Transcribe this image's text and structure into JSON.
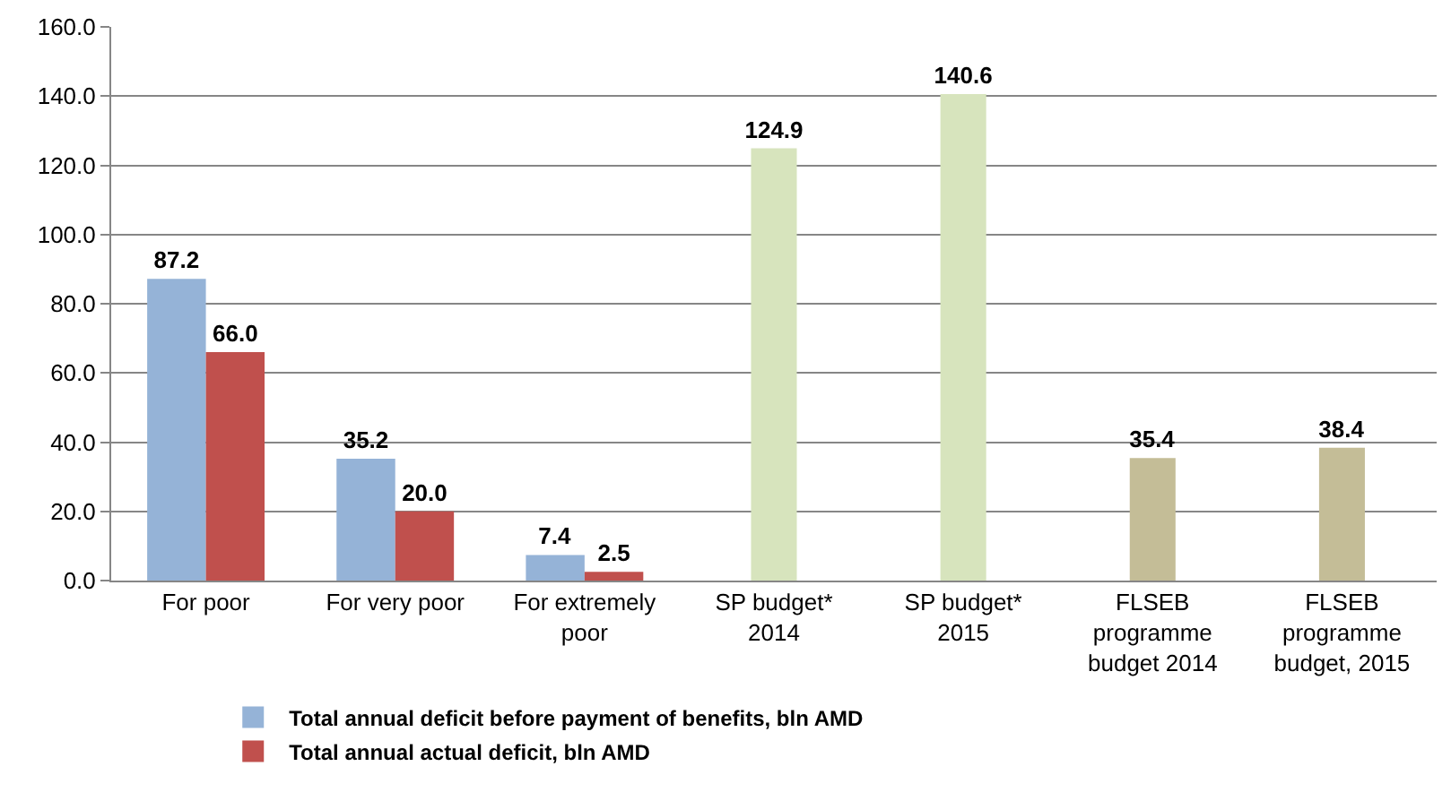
{
  "chart_data": {
    "type": "bar",
    "categories": [
      "For poor",
      "For very poor",
      "For extremely poor",
      "SP budget* 2014",
      "SP budget* 2015",
      "FLSEB programme budget 2014",
      "FLSEB programme budget, 2015"
    ],
    "series": [
      {
        "name": "Total annual deficit before payment of benefits, bln AMD",
        "color": "#95b3d7",
        "values": [
          87.2,
          35.2,
          7.4,
          null,
          null,
          null,
          null
        ],
        "value_labels": [
          "87.2",
          "35.2",
          "7.4",
          null,
          null,
          null,
          null
        ]
      },
      {
        "name": "Total annual actual deficit, bln AMD",
        "color": "#c0504d",
        "values": [
          66.0,
          20.0,
          2.5,
          null,
          null,
          null,
          null
        ],
        "value_labels": [
          "66.0",
          "20.0",
          "2.5",
          null,
          null,
          null,
          null
        ]
      },
      {
        "colors": [
          null,
          null,
          null,
          "#d7e4bd",
          "#d7e4bd",
          "#c4bd97",
          "#c4bd97"
        ],
        "values": [
          null,
          null,
          null,
          124.9,
          140.6,
          35.4,
          38.4
        ],
        "value_labels": [
          null,
          null,
          null,
          "124.9",
          "140.6",
          "35.4",
          "38.4"
        ]
      }
    ],
    "ylim": [
      0,
      160
    ],
    "yticks": [
      {
        "value": 0,
        "label": "0.0"
      },
      {
        "value": 20,
        "label": "20.0"
      },
      {
        "value": 40,
        "label": "40.0"
      },
      {
        "value": 60,
        "label": "60.0"
      },
      {
        "value": 80,
        "label": "80.0"
      },
      {
        "value": 100,
        "label": "100.0"
      },
      {
        "value": 120,
        "label": "120.0"
      },
      {
        "value": 140,
        "label": "140.0"
      },
      {
        "value": 160,
        "label": "160.0"
      }
    ],
    "grid": "y",
    "legend": "bottom"
  }
}
